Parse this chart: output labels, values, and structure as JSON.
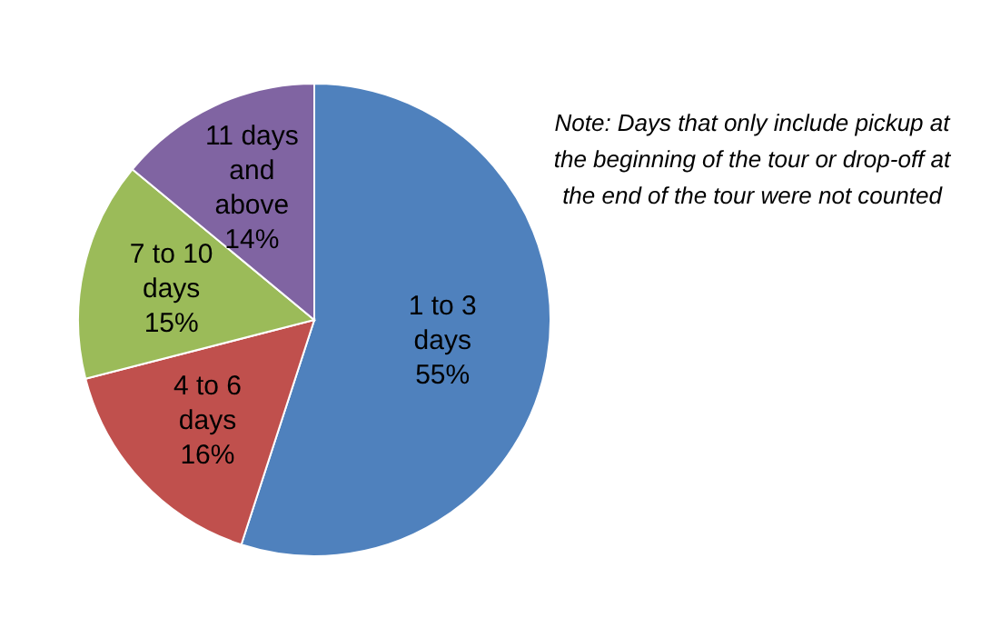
{
  "chart_data": {
    "type": "pie",
    "categories": [
      "1 to 3 days",
      "4 to 6 days",
      "7 to 10 days",
      "11 days and above"
    ],
    "values": [
      55,
      16,
      15,
      14
    ],
    "value_labels": [
      "55%",
      "16%",
      "15%",
      "14%"
    ],
    "colors": [
      "#4f81bd",
      "#c0504d",
      "#9bbb59",
      "#8064a2"
    ],
    "legend": false,
    "annotations": [
      "Note: Days that only include pickup at the beginning of the tour or drop-off at the end of the tour were not counted"
    ]
  }
}
